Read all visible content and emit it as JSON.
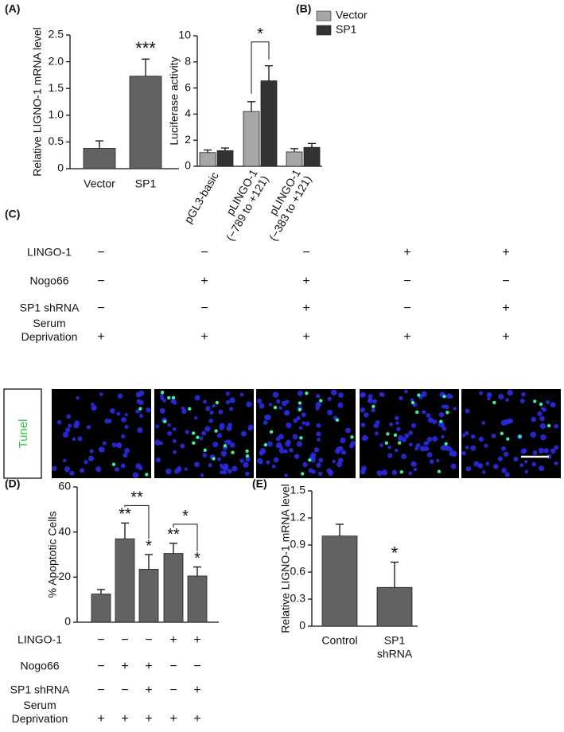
{
  "panel_labels": [
    "(A)",
    "(B)",
    "(C)",
    "(D)",
    "(E)"
  ],
  "chart_data": [
    {
      "type": "bar",
      "ylabel": "Relative LIGNO-1 mRNA level",
      "categories": [
        [
          "Vector"
        ],
        [
          "SP1"
        ]
      ],
      "values": [
        0.38,
        1.73
      ],
      "errors": [
        0.14,
        0.32
      ],
      "color": "#626262",
      "ylim": [
        0,
        2.5
      ],
      "yticks": [
        0,
        0.5,
        {
          "value": 1,
          "label": "1.0"
        },
        1.5,
        {
          "value": 2,
          "label": "2.0"
        },
        2.5
      ],
      "annotations": [
        "***"
      ]
    },
    {
      "type": "grouped_bar",
      "ylabel": "Luciferase activity",
      "categories": [
        [
          "pGL3-basic"
        ],
        [
          "pLINGO-1",
          "(−789 to +121)"
        ],
        [
          "pLINGO-1",
          "(−383 to +121)"
        ]
      ],
      "series": [
        {
          "name": "Vector",
          "color": "#a6a6a6",
          "values": [
            1.05,
            4.2,
            1.1
          ],
          "errors": [
            0.2,
            0.75,
            0.25
          ]
        },
        {
          "name": "SP1",
          "color": "#333333",
          "values": [
            1.2,
            6.55,
            1.45
          ],
          "errors": [
            0.2,
            1.15,
            0.3
          ]
        }
      ],
      "ylim": [
        0,
        10
      ],
      "yticks": [
        0,
        2,
        4,
        6,
        8,
        10
      ],
      "legend": "upper left",
      "annotations": [
        "*"
      ]
    },
    {
      "type": "bar",
      "ylabel": "% Apoptotic Cells",
      "values": [
        12.5,
        37,
        23.5,
        30.5,
        20.5
      ],
      "errors": [
        2,
        7,
        6.5,
        4.5,
        4
      ],
      "color": "#626262",
      "ylim": [
        0,
        60
      ],
      "yticks": [
        0,
        20,
        40,
        60
      ],
      "annotations": [
        "**",
        "*",
        "**",
        "*",
        "**",
        "*"
      ]
    },
    {
      "type": "bar",
      "ylabel": "Relative LIGNO-1 mRNA level",
      "categories": [
        [
          "Control"
        ],
        [
          "SP1",
          "shRNA"
        ]
      ],
      "values": [
        1.0,
        0.43
      ],
      "errors": [
        0.13,
        0.28
      ],
      "color": "#626262",
      "ylim": [
        0,
        1.5
      ],
      "yticks": [
        0,
        0.3,
        0.6,
        0.9,
        1.2,
        1.5
      ],
      "annotations": [
        "*"
      ]
    }
  ],
  "conditions": [
    {
      "rows": [
        {
          "label": [
            "LINGO-1"
          ],
          "cells": [
            "−",
            "−",
            "−",
            "+",
            "+"
          ]
        },
        {
          "label": [
            "Nogo66"
          ],
          "cells": [
            "−",
            "+",
            "+",
            "−",
            "−"
          ]
        },
        {
          "label": [
            "SP1 shRNA"
          ],
          "cells": [
            "−",
            "−",
            "+",
            "−",
            "+"
          ]
        },
        {
          "label": [
            "Serum",
            "Deprivation"
          ],
          "cells": [
            "+",
            "+",
            "+",
            "+",
            "+"
          ]
        }
      ]
    },
    {
      "rows": [
        {
          "label": [
            "LINGO-1"
          ],
          "cells": [
            "−",
            "−",
            "−",
            "+",
            "+"
          ]
        },
        {
          "label": [
            "Nogo66"
          ],
          "cells": [
            "−",
            "+",
            "+",
            "−",
            "−"
          ]
        },
        {
          "label": [
            "SP1 shRNA"
          ],
          "cells": [
            "−",
            "−",
            "+",
            "−",
            "+"
          ]
        },
        {
          "label": [
            "Serum",
            "Deprivation"
          ],
          "cells": [
            "+",
            "+",
            "+",
            "+",
            "+"
          ]
        }
      ]
    }
  ],
  "image_label": "Tunel"
}
